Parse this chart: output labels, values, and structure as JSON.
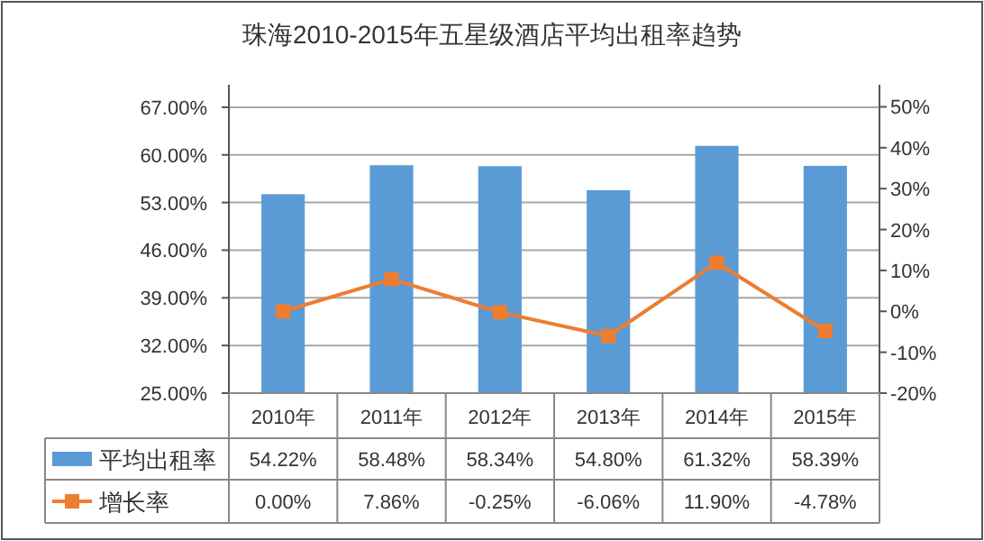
{
  "chart_data": {
    "type": "bar",
    "title": "珠海2010-2015年五星级酒店平均出租率趋势",
    "categories": [
      "2010年",
      "2011年",
      "2012年",
      "2013年",
      "2014年",
      "2015年"
    ],
    "series": [
      {
        "name": "平均出租率",
        "color": "#5b9bd5",
        "values": [
          54.22,
          58.48,
          58.34,
          54.8,
          61.32,
          58.39
        ],
        "value_labels": [
          "54.22%",
          "58.48%",
          "58.34%",
          "54.80%",
          "61.32%",
          "58.39%"
        ]
      },
      {
        "name": "增长率",
        "type": "line",
        "axis": "y2",
        "color": "#ed7d31",
        "values": [
          0.0,
          7.86,
          -0.25,
          -6.06,
          11.9,
          -4.78
        ],
        "value_labels": [
          "0.00%",
          "7.86%",
          "-0.25%",
          "-6.06%",
          "11.90%",
          "-4.78%"
        ]
      }
    ],
    "ylim": [
      25,
      70.3
    ],
    "yticks": [
      {
        "value": 25,
        "label": "25.00%"
      },
      {
        "value": 32,
        "label": "32.00%"
      },
      {
        "value": 39,
        "label": "39.00%"
      },
      {
        "value": 46,
        "label": "46.00%"
      },
      {
        "value": 53,
        "label": "53.00%"
      },
      {
        "value": 60,
        "label": "60.00%"
      },
      {
        "value": 67,
        "label": "67.00%"
      }
    ],
    "y2lim": [
      -20,
      55.4
    ],
    "y2ticks": [
      {
        "value": -20,
        "label": "-20%"
      },
      {
        "value": -10,
        "label": "-10%"
      },
      {
        "value": 0,
        "label": "0%"
      },
      {
        "value": 10,
        "label": "10%"
      },
      {
        "value": 20,
        "label": "20%"
      },
      {
        "value": 30,
        "label": "30%"
      },
      {
        "value": 40,
        "label": "40%"
      },
      {
        "value": 50,
        "label": "50%"
      }
    ],
    "grid": "y",
    "legend": "bottom",
    "marker": "square"
  }
}
